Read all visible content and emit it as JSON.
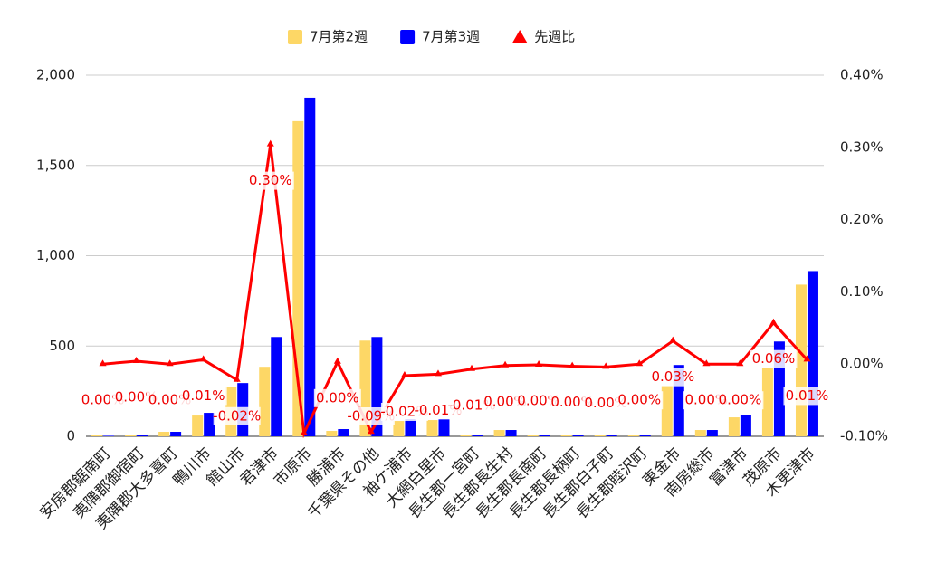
{
  "chart_data": {
    "type": "bar",
    "categories": [
      "安房郡鋸南町",
      "夷隅郡御宿町",
      "夷隅郡大多喜町",
      "鴨川市",
      "館山市",
      "君津市",
      "市原市",
      "勝浦市",
      "千葉県その他",
      "袖ケ浦市",
      "大網白里市",
      "長生郡一宮町",
      "長生郡長生村",
      "長生郡長南町",
      "長生郡長柄町",
      "長生郡白子町",
      "長生郡睦沢町",
      "東金市",
      "南房総市",
      "富津市",
      "茂原市",
      "木更津市"
    ],
    "series": [
      {
        "name": "7月第2週",
        "type": "bar",
        "color": "#fdd766",
        "values": [
          5,
          5,
          25,
          115,
          275,
          385,
          1745,
          30,
          530,
          85,
          90,
          10,
          35,
          5,
          10,
          5,
          10,
          280,
          35,
          105,
          380,
          840
        ]
      },
      {
        "name": "7月第3週",
        "type": "bar",
        "color": "#0000ff",
        "values": [
          3,
          5,
          25,
          130,
          295,
          550,
          1875,
          40,
          550,
          95,
          95,
          5,
          35,
          5,
          10,
          5,
          10,
          395,
          35,
          120,
          525,
          915
        ]
      },
      {
        "name": "先週比",
        "type": "line",
        "axis": "y2",
        "color": "#ff0000",
        "values": [
          0.0,
          0.004,
          0.0,
          0.006,
          -0.022,
          0.304,
          -0.096,
          0.003,
          -0.094,
          -0.016,
          -0.014,
          -0.007,
          -0.002,
          -0.001,
          -0.003,
          -0.004,
          0.0,
          0.032,
          0.0,
          0.0,
          0.057,
          0.006
        ],
        "value_labels": [
          "0.00%",
          "0.00%",
          "0.00%",
          "0.01%",
          "-0.02%",
          "0.30%",
          null,
          "0.00%",
          "-0.09%",
          "-0.02%",
          "-0.01%",
          "-0.01%",
          "0.00%",
          "0.00%",
          "0.00%",
          "0.00%",
          "0.00%",
          "0.03%",
          "0.00%",
          "0.00%",
          "0.06%",
          "0.01%"
        ]
      }
    ],
    "ylim": [
      0,
      2000
    ],
    "yticks": [
      0,
      500,
      {
        "value": 1000,
        "label": "1,000"
      },
      {
        "value": 1500,
        "label": "1,500"
      },
      {
        "value": 2000,
        "label": "2,000"
      }
    ],
    "y2lim": [
      -0.1,
      0.4
    ],
    "y2ticks": [
      {
        "value": -0.1,
        "label": "-0.10%"
      },
      {
        "value": 0,
        "label": "0.00%"
      },
      {
        "value": 0.1,
        "label": "0.10%"
      },
      {
        "value": 0.2,
        "label": "0.20%"
      },
      {
        "value": 0.3,
        "label": "0.30%"
      },
      {
        "value": 0.4,
        "label": "0.40%"
      }
    ],
    "grid": true,
    "legend": "top"
  }
}
